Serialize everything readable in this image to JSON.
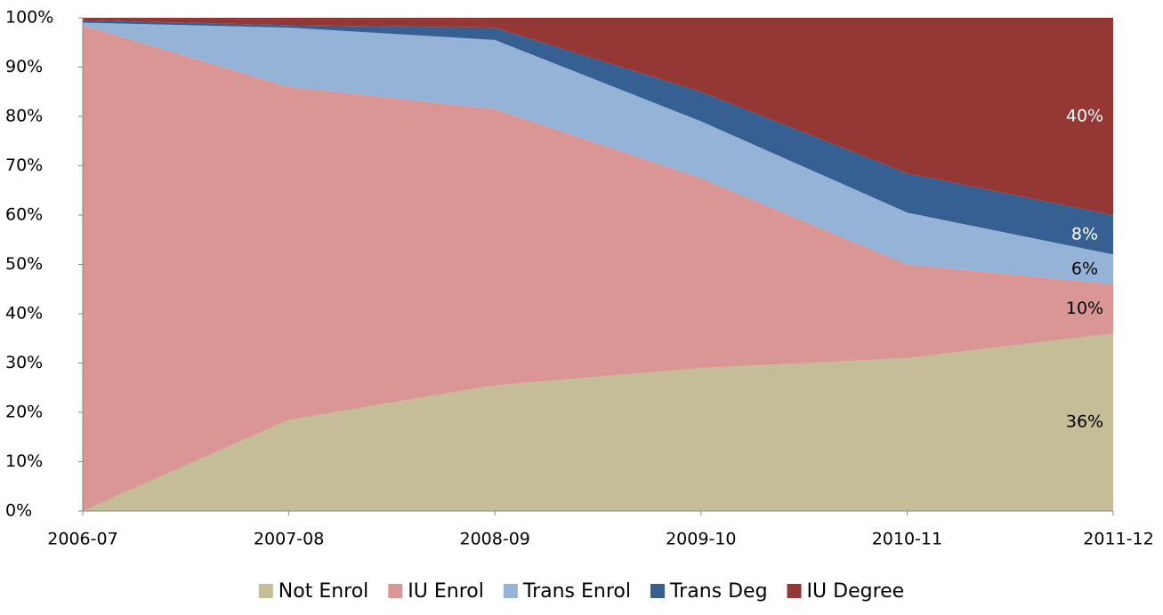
{
  "chart_data": {
    "type": "stacked_area",
    "categories": [
      "2006-07",
      "2007-08",
      "2008-09",
      "2009-10",
      "2010-11",
      "2011-12"
    ],
    "series": [
      {
        "name": "Not Enrol",
        "color": "#c4bd97",
        "label_color": "#000000",
        "values": [
          0,
          18.5,
          25.5,
          29,
          31,
          36
        ],
        "value_labels": [
          null,
          null,
          null,
          null,
          null,
          "36%"
        ]
      },
      {
        "name": "IU Enrol",
        "color": "#d99694",
        "label_color": "#000000",
        "values": [
          98.5,
          67.5,
          56,
          38.5,
          19,
          10
        ],
        "value_labels": [
          null,
          null,
          null,
          null,
          null,
          "10%"
        ]
      },
      {
        "name": "Trans Enrol",
        "color": "#95b3d7",
        "label_color": "#000000",
        "values": [
          0.5,
          12,
          14,
          11.5,
          10.5,
          6
        ],
        "value_labels": [
          null,
          null,
          null,
          null,
          null,
          "6%"
        ]
      },
      {
        "name": "Trans Deg",
        "color": "#366092",
        "label_color": "#ffffff",
        "values": [
          0.5,
          0.5,
          2.5,
          6,
          8,
          8
        ],
        "value_labels": [
          null,
          null,
          null,
          null,
          null,
          "8%"
        ]
      },
      {
        "name": "IU Degree",
        "color": "#953735",
        "label_color": "#ffffff",
        "values": [
          0.5,
          1.5,
          2,
          15,
          31.5,
          40
        ],
        "value_labels": [
          null,
          null,
          null,
          null,
          null,
          "40%"
        ]
      }
    ],
    "ylim": [
      0,
      100
    ],
    "yticks": [
      {
        "value": 0,
        "label": "0%"
      },
      {
        "value": 10,
        "label": "10%"
      },
      {
        "value": 20,
        "label": "20%"
      },
      {
        "value": 30,
        "label": "30%"
      },
      {
        "value": 40,
        "label": "40%"
      },
      {
        "value": 50,
        "label": "50%"
      },
      {
        "value": 60,
        "label": "60%"
      },
      {
        "value": 70,
        "label": "70%"
      },
      {
        "value": 80,
        "label": "80%"
      },
      {
        "value": 90,
        "label": "90%"
      },
      {
        "value": 100,
        "label": "100%"
      }
    ],
    "legend": "bottom"
  }
}
